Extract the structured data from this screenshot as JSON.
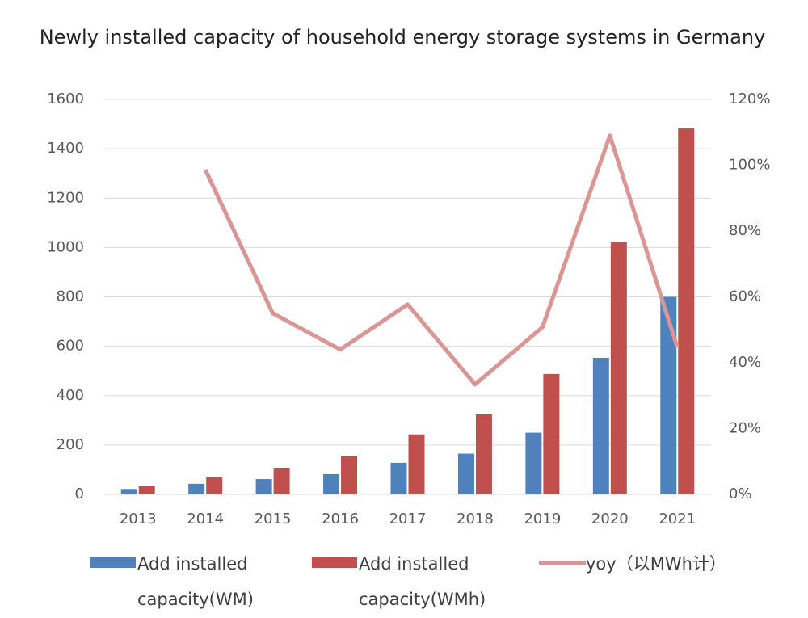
{
  "chart_data": {
    "type": "bar",
    "title": "Newly installed capacity of household energy storage systems in Germany",
    "categories": [
      "2013",
      "2014",
      "2015",
      "2016",
      "2017",
      "2018",
      "2019",
      "2020",
      "2021"
    ],
    "series": [
      {
        "name": "Add installed capacity(WM)",
        "color": "#4f81bd",
        "type": "bar",
        "values": [
          22,
          43,
          62,
          82,
          128,
          165,
          250,
          553,
          800
        ]
      },
      {
        "name": "Add installed capacity(WMh)",
        "color": "#c0504d",
        "type": "bar",
        "values": [
          33,
          69,
          108,
          154,
          243,
          324,
          488,
          1021,
          1482
        ]
      },
      {
        "name": "yoy（以MWh计）",
        "color": "#d99694",
        "type": "line",
        "axis": "y2",
        "values": [
          null,
          98.6,
          55,
          44,
          57.7,
          33.4,
          50.8,
          109,
          44.7
        ]
      }
    ],
    "ylim": [
      0,
      1600
    ],
    "yticks": [
      0,
      200,
      400,
      600,
      800,
      1000,
      1200,
      1400,
      1600
    ],
    "y2lim": [
      0,
      120
    ],
    "y2ticks": [
      {
        "value": 0,
        "label": "0%"
      },
      {
        "value": 20,
        "label": "20%"
      },
      {
        "value": 40,
        "label": "40%"
      },
      {
        "value": 60,
        "label": "60%"
      },
      {
        "value": 80,
        "label": "80%"
      },
      {
        "value": 100,
        "label": "100%"
      },
      {
        "value": 120,
        "label": "120%"
      }
    ],
    "grid": true,
    "legend": "bottom"
  }
}
